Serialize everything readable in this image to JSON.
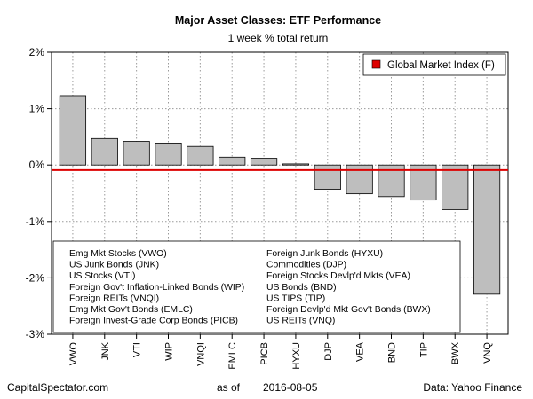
{
  "chart_data": {
    "type": "bar",
    "title": "Major Asset Classes: ETF Performance",
    "subtitle": "1 week % total return",
    "categories": [
      "VWO",
      "JNK",
      "VTI",
      "WIP",
      "VNQI",
      "EMLC",
      "PICB",
      "HYXU",
      "DJP",
      "VEA",
      "BND",
      "TIP",
      "BWX",
      "VNQ"
    ],
    "values": [
      1.23,
      0.47,
      0.42,
      0.39,
      0.33,
      0.14,
      0.12,
      0.02,
      -0.43,
      -0.51,
      -0.56,
      -0.62,
      -0.79,
      -2.29
    ],
    "ylim": [
      -3,
      2
    ],
    "yticks": [
      -3,
      -2,
      -1,
      0,
      1,
      2
    ],
    "ytick_labels": [
      "-3%",
      "-2%",
      "-1%",
      "0%",
      "1%",
      "2%"
    ],
    "grid": true,
    "bar_color": "#bebebe",
    "reference_line": {
      "name": "Global Market Index (F)",
      "value": -0.09,
      "color": "#dd0000"
    },
    "legend_position": "top-right",
    "descriptions": [
      "Emg Mkt Stocks (VWO)",
      "US Junk Bonds (JNK)",
      "US Stocks (VTI)",
      "Foreign Gov't Inflation-Linked Bonds (WIP)",
      "Foreign REITs (VNQI)",
      "Emg Mkt Gov't Bonds (EMLC)",
      "Foreign Invest-Grade Corp Bonds (PICB)",
      "Foreign Junk Bonds (HYXU)",
      "Commodities (DJP)",
      "Foreign Stocks Devlp'd Mkts (VEA)",
      "US Bonds (BND)",
      "US TIPS (TIP)",
      "Foreign Devlp'd Mkt Gov't Bonds (BWX)",
      "US REITs (VNQ)"
    ]
  },
  "footer": {
    "source_left": "CapitalSpectator.com",
    "as_of_label": "as of",
    "date": "2016-08-05",
    "source_right": "Data: Yahoo Finance"
  }
}
